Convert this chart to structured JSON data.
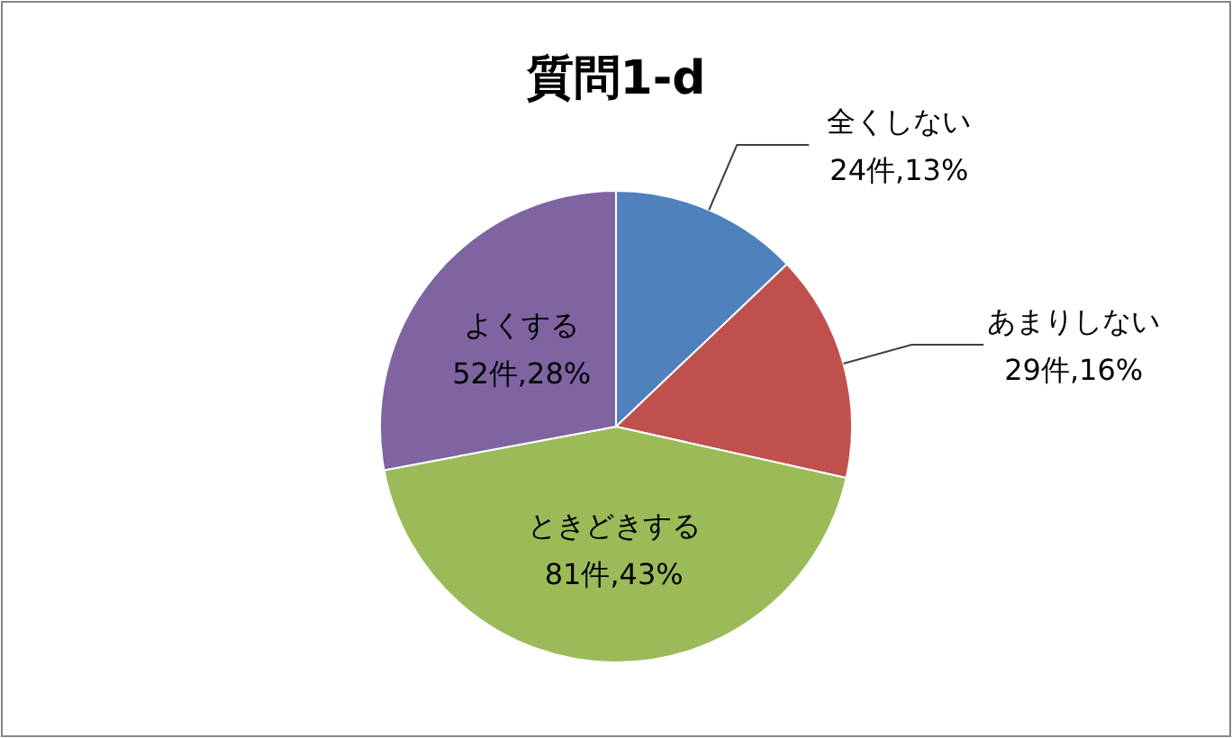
{
  "chart_data": {
    "type": "pie",
    "title": "質問1-d",
    "categories": [
      "全くしない",
      "あまりしない",
      "ときどきする",
      "よくする"
    ],
    "values": [
      24,
      29,
      81,
      52
    ],
    "value_labels": [
      "24件,13%",
      "29件,16%",
      "81件,43%",
      "52件,28%"
    ],
    "colors": [
      "#4f81bd",
      "#c0504d",
      "#9bbb59",
      "#8064a2"
    ]
  }
}
